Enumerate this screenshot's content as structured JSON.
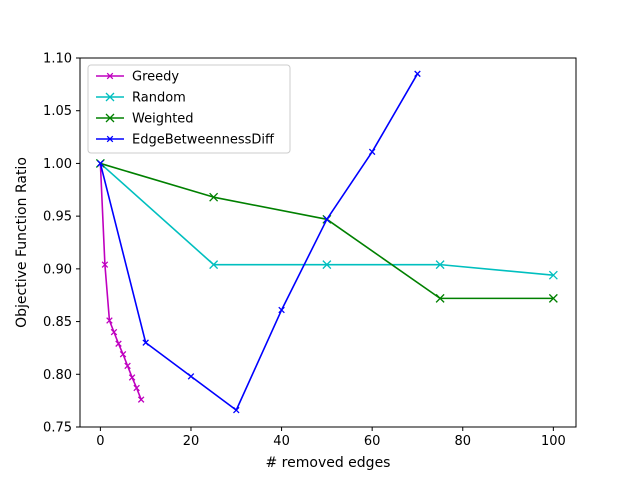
{
  "chart_data": {
    "type": "line",
    "title": "",
    "xlabel": "# removed edges",
    "ylabel": "Objective Function Ratio",
    "xlim": [
      -4.5,
      105
    ],
    "ylim": [
      0.75,
      1.1
    ],
    "x_ticks": [
      0,
      20,
      40,
      60,
      80,
      100
    ],
    "x_tick_labels": [
      "0",
      "20",
      "40",
      "60",
      "80",
      "100"
    ],
    "y_ticks": [
      0.75,
      0.8,
      0.85,
      0.9,
      0.95,
      1.0,
      1.05,
      1.1
    ],
    "y_tick_labels": [
      "0.75",
      "0.80",
      "0.85",
      "0.90",
      "0.95",
      "1.00",
      "1.05",
      "1.10"
    ],
    "grid": false,
    "legend_position": "top-left",
    "series": [
      {
        "name": "Greedy",
        "color": "#bf00bf",
        "marker": "x-small",
        "x": [
          0,
          1,
          2,
          3,
          4,
          5,
          6,
          7,
          8,
          9
        ],
        "y": [
          1.0,
          0.904,
          0.851,
          0.84,
          0.829,
          0.819,
          0.808,
          0.797,
          0.787,
          0.776
        ]
      },
      {
        "name": "Random",
        "color": "#00bfbf",
        "marker": "x",
        "x": [
          0,
          25,
          50,
          75,
          100
        ],
        "y": [
          1.0,
          0.904,
          0.904,
          0.904,
          0.894
        ]
      },
      {
        "name": "Weighted",
        "color": "#008000",
        "marker": "x",
        "x": [
          0,
          25,
          50,
          75,
          100
        ],
        "y": [
          1.0,
          0.968,
          0.947,
          0.872,
          0.872
        ]
      },
      {
        "name": "EdgeBetweennessDiff",
        "color": "#0000ff",
        "marker": "x-small",
        "x": [
          0,
          10,
          20,
          30,
          40,
          50,
          60,
          70
        ],
        "y": [
          1.0,
          0.83,
          0.798,
          0.766,
          0.861,
          0.947,
          1.011,
          1.085
        ]
      }
    ]
  }
}
